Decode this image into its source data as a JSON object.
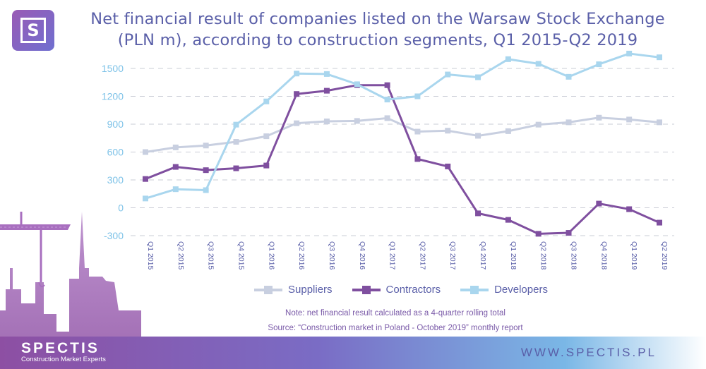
{
  "title_line1": "Net financial result of companies listed on the Warsaw Stock Exchange",
  "title_line2": "(PLN m), according to construction segments, Q1 2015-Q2 2019",
  "note": "Note: net financial result calculated as a 4-quarter rolling total",
  "source": "Source: “Construction market in Poland - October 2019” monthly report",
  "brand": "SPECTIS",
  "brand_sub": "Construction Market Experts",
  "website": "WWW.SPECTIS.PL",
  "logo_letter": "S",
  "colors": {
    "suppliers": "#c8cfe0",
    "contractors": "#7f4f9f",
    "developers": "#a9d6ee",
    "axis_text": "#7fc3e8",
    "title": "#5a5fa8"
  },
  "chart_data": {
    "type": "line",
    "categories": [
      "Q1 2015",
      "Q2 2015",
      "Q3 2015",
      "Q4 2015",
      "Q1 2016",
      "Q2 2016",
      "Q3 2016",
      "Q4 2016",
      "Q1 2017",
      "Q2 2017",
      "Q3 2017",
      "Q4 2017",
      "Q1 2018",
      "Q2 2018",
      "Q3 2018",
      "Q4 2018",
      "Q1 2019",
      "Q2 2019"
    ],
    "yticks": [
      -300,
      0,
      300,
      600,
      900,
      1200,
      1500
    ],
    "ylim": [
      -300,
      1500
    ],
    "grid": true,
    "legend_position": "bottom",
    "series": [
      {
        "name": "Suppliers",
        "color": "#c8cfe0",
        "values": [
          600,
          650,
          670,
          710,
          770,
          910,
          930,
          935,
          965,
          820,
          830,
          775,
          825,
          895,
          920,
          970,
          950,
          920
        ]
      },
      {
        "name": "Contractors",
        "color": "#7f4f9f",
        "values": [
          310,
          440,
          405,
          425,
          455,
          1225,
          1260,
          1320,
          1320,
          525,
          445,
          -60,
          -130,
          -280,
          -270,
          45,
          -15,
          -160
        ]
      },
      {
        "name": "Developers",
        "color": "#a9d6ee",
        "values": [
          100,
          200,
          190,
          895,
          1145,
          1445,
          1440,
          1330,
          1165,
          1200,
          1435,
          1405,
          1600,
          1550,
          1410,
          1545,
          1660,
          1620
        ]
      }
    ]
  }
}
